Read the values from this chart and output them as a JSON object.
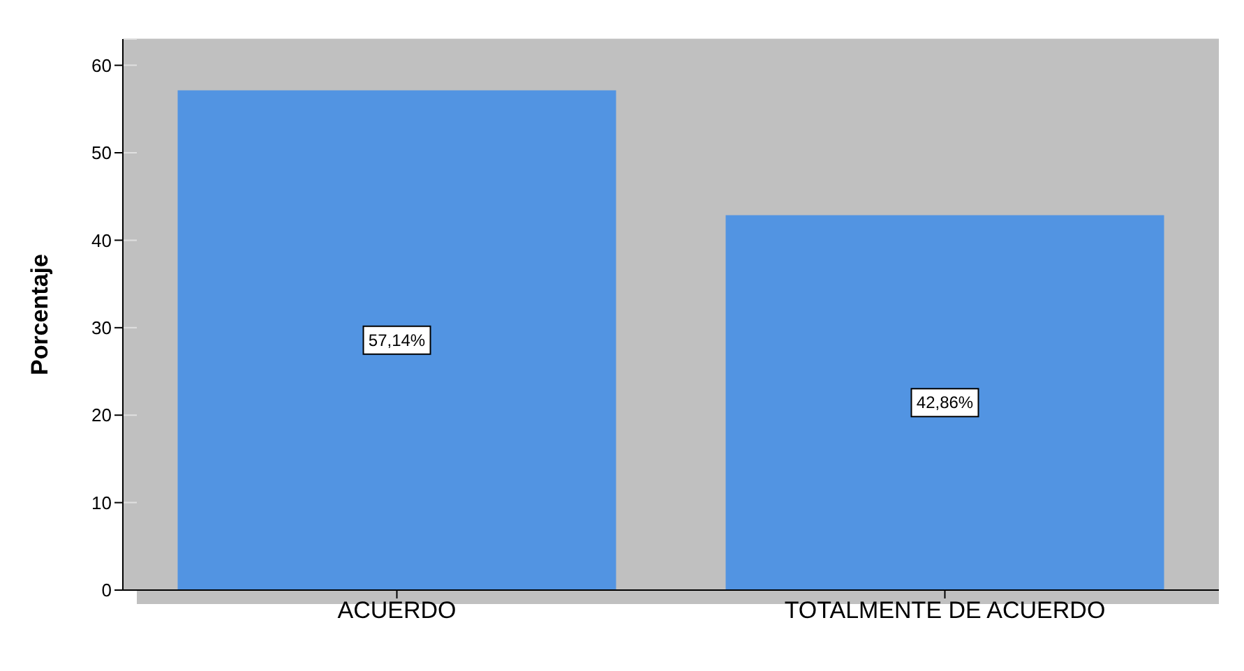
{
  "chart_data": {
    "type": "bar",
    "ylabel": "Porcentaje",
    "categories": [
      "ACUERDO",
      "TOTALMENTE DE  ACUERDO"
    ],
    "series": [
      {
        "color": "#5294e2",
        "values": [
          57.14,
          42.86
        ],
        "value_labels": [
          "57,14%",
          "42,86%"
        ]
      }
    ],
    "ylim": [
      0,
      63
    ],
    "yticks": [
      0,
      10,
      20,
      30,
      40,
      50,
      60
    ],
    "grid": "y"
  }
}
